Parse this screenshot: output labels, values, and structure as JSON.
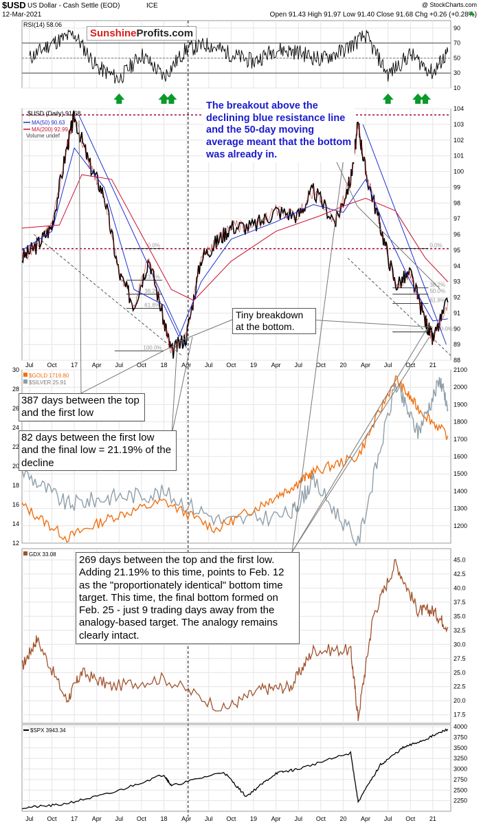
{
  "header": {
    "symbol": "$USD",
    "desc": "US Dollar - Cash Settle (EOD)",
    "exchange": "ICE",
    "date": "12-Mar-2021",
    "copyright": "@ StockCharts.com",
    "ohlc": "Open 91.43  High 91.97  Low 91.40  Close 91.68  Chg +0.26 (+0.28%)"
  },
  "logo": {
    "part1": "Sunshine",
    "part2": "Profits.com"
  },
  "colors": {
    "ma50": "#1f2fd0",
    "ma200": "#c8102e",
    "gold": "#f07010",
    "silver": "#8f9ea8",
    "gdx": "#a0522d",
    "spx": "#000000",
    "resistance": "#a00040",
    "arrow": "#0a9a2a"
  },
  "callouts": {
    "breakout": "The breakout above the declining blue resistance line and the 50-day moving average meant that the bottom was already in.",
    "tiny": "Tiny breakdown at the bottom.",
    "days387": "387 days between the top and the first low",
    "days82": "82 days between the first low and the final low = 21.19% of the decline",
    "days269": "269 days between the top and the first low. Adding 21.19% to this time, points to Feb. 12 as the \"proportionately identical\" bottom time target. This time, the final bottom formed on Feb. 25 - just 9 trading days away from the analogy-based target. The analogy remains clearly intact."
  },
  "chart_data": [
    {
      "type": "line",
      "title": "RSI(14) 58.06",
      "ylim": [
        10,
        100
      ],
      "yticks": [
        10,
        30,
        50,
        70,
        90
      ],
      "reference_lines": [
        30,
        50,
        70
      ],
      "series": [
        {
          "name": "RSI(14) 58.06",
          "x": [
            "Jul 2016",
            "Oct 2016",
            "Jan 2017",
            "Apr 2017",
            "Jul 2017",
            "Oct 2017",
            "Jan 2018",
            "Apr 2018",
            "Jul 2018",
            "Oct 2018",
            "Jan 2019",
            "Apr 2019",
            "Jul 2019",
            "Oct 2019",
            "Jan 2020",
            "Apr 2020",
            "Jul 2020",
            "Oct 2020",
            "Jan 2021",
            "Mar 2021"
          ],
          "values": [
            50,
            70,
            82,
            38,
            22,
            55,
            25,
            62,
            68,
            55,
            45,
            62,
            58,
            48,
            60,
            80,
            28,
            55,
            30,
            58
          ]
        }
      ],
      "markers": {
        "up_arrows": [
          "Jul 2017",
          "Jan 2018",
          "Feb 2018",
          "Jul 2020",
          "Nov 2020",
          "Dec 2020"
        ]
      }
    },
    {
      "type": "line",
      "title": "$USD (Daily) 91.68",
      "ylim": [
        88,
        104
      ],
      "yticks": [
        88,
        89,
        90,
        91,
        92,
        93,
        94,
        95,
        96,
        97,
        98,
        99,
        100,
        101,
        102,
        103,
        104
      ],
      "xticks": [
        "Jul",
        "Oct",
        "17",
        "Apr",
        "Jul",
        "Oct",
        "18",
        "Apr",
        "Jul",
        "Oct",
        "19",
        "Apr",
        "Jul",
        "Oct",
        "20",
        "Apr",
        "Jul",
        "Oct",
        "21"
      ],
      "series": [
        {
          "name": "$USD (Daily) 91.68",
          "x": [
            "Jun 2016",
            "Aug 2016",
            "Oct 2016",
            "Dec 2016",
            "Jan 2017",
            "Mar 2017",
            "May 2017",
            "Jul 2017",
            "Sep 2017",
            "Nov 2017",
            "Jan 2018",
            "Feb 2018",
            "Apr 2018",
            "Jun 2018",
            "Aug 2018",
            "Oct 2018",
            "Jan 2019",
            "Apr 2019",
            "Jul 2019",
            "Sep 2019",
            "Dec 2019",
            "Feb 2020",
            "Mar 2020",
            "Apr 2020",
            "Jun 2020",
            "Aug 2020",
            "Oct 2020",
            "Dec 2020",
            "Jan 2021",
            "Mar 2021"
          ],
          "values": [
            94.5,
            95.3,
            96.5,
            101.5,
            103.5,
            100.5,
            98.5,
            93.5,
            91.5,
            94.5,
            90.5,
            88.5,
            89.5,
            94.5,
            95.5,
            96.5,
            96.5,
            97.5,
            97.2,
            98.8,
            96.8,
            99.5,
            103.0,
            100.0,
            96.5,
            92.8,
            93.5,
            90.5,
            89.3,
            91.68
          ]
        },
        {
          "name": "MA(50) 90.63",
          "x": [
            "Jun 2016",
            "Oct 2016",
            "Jan 2017",
            "May 2017",
            "Sep 2017",
            "Jan 2018",
            "Mar 2018",
            "Jun 2018",
            "Oct 2018",
            "Apr 2019",
            "Sep 2019",
            "Jan 2020",
            "Apr 2020",
            "Jul 2020",
            "Oct 2020",
            "Jan 2021",
            "Mar 2021"
          ],
          "values": [
            95.0,
            96.2,
            101.5,
            99.0,
            92.5,
            91.5,
            89.5,
            93.0,
            95.7,
            96.8,
            97.9,
            97.4,
            99.5,
            96.0,
            93.0,
            90.5,
            90.63
          ]
        },
        {
          "name": "MA(200) 92.99",
          "x": [
            "Jun 2016",
            "Nov 2016",
            "Feb 2017",
            "Jun 2017",
            "Oct 2017",
            "Feb 2018",
            "May 2018",
            "Oct 2018",
            "Apr 2019",
            "Oct 2019",
            "Jan 2020",
            "Apr 2020",
            "Aug 2020",
            "Dec 2020",
            "Mar 2021"
          ],
          "values": [
            96.4,
            96.6,
            99.8,
            99.5,
            96.0,
            92.5,
            91.8,
            94.3,
            96.2,
            97.2,
            97.8,
            98.3,
            97.5,
            94.5,
            92.99
          ]
        }
      ],
      "annotations": [
        "0.0%",
        "23.6%",
        "38.2%",
        "50.0%",
        "61.8%",
        "100.0%"
      ],
      "legend": [
        "MA(50) 90.63",
        "MA(200) 92.99",
        "Volume undef"
      ]
    },
    {
      "type": "line",
      "title": "$GOLD 1719.80 / $SILVER 25.91",
      "ylim_left": [
        12,
        30
      ],
      "ylim_right": [
        1100,
        2100
      ],
      "yticks_right": [
        1200,
        1300,
        1400,
        1500,
        1600,
        1700,
        1800,
        1900,
        2000,
        2100
      ],
      "series": [
        {
          "name": "$GOLD 1719.80",
          "x": [
            "Jun 2016",
            "Dec 2016",
            "Jun 2017",
            "Jan 2018",
            "Aug 2018",
            "Feb 2019",
            "Jun 2019",
            "Sep 2019",
            "Mar 2020",
            "Aug 2020",
            "Nov 2020",
            "Mar 2021"
          ],
          "values": [
            1320,
            1130,
            1250,
            1340,
            1180,
            1320,
            1420,
            1510,
            1600,
            2050,
            1880,
            1719.8
          ]
        },
        {
          "name": "$SILVER 25.91",
          "x": [
            "Jun 2016",
            "Dec 2016",
            "Jun 2017",
            "Jan 2018",
            "Sep 2018",
            "Jun 2019",
            "Sep 2019",
            "Mar 2020",
            "Aug 2020",
            "Nov 2020",
            "Feb 2021",
            "Mar 2021"
          ],
          "values": [
            19.5,
            16.0,
            16.8,
            17.2,
            14.2,
            15.0,
            18.5,
            12.0,
            28.5,
            23.5,
            29.0,
            25.91
          ]
        }
      ]
    },
    {
      "type": "line",
      "title": "GDX 33.08",
      "ylim": [
        16,
        47
      ],
      "yticks": [
        17.5,
        20.0,
        22.5,
        25.0,
        27.5,
        30.0,
        32.5,
        35.0,
        37.5,
        40.0,
        42.5,
        45.0
      ],
      "series": [
        {
          "name": "GDX 33.08",
          "x": [
            "Jun 2016",
            "Aug 2016",
            "Dec 2016",
            "Feb 2017",
            "Jun 2017",
            "Jan 2018",
            "Sep 2018",
            "Feb 2019",
            "Jun 2019",
            "Sep 2019",
            "Feb 2020",
            "Mar 2020",
            "May 2020",
            "Aug 2020",
            "Nov 2020",
            "Jan 2021",
            "Mar 2021"
          ],
          "values": [
            26.0,
            31.0,
            20.0,
            25.0,
            22.5,
            24.0,
            18.5,
            22.0,
            22.5,
            29.0,
            29.0,
            17.0,
            35.0,
            44.5,
            36.0,
            36.0,
            33.08
          ]
        }
      ]
    },
    {
      "type": "line",
      "title": "$SPX 3943.34",
      "ylim": [
        2000,
        4050
      ],
      "yticks": [
        2250,
        2500,
        2750,
        3000,
        3250,
        3500,
        3750,
        4000
      ],
      "xticks": [
        "Jul",
        "Oct",
        "17",
        "Apr",
        "Jul",
        "Oct",
        "18",
        "Apr",
        "Jul",
        "Oct",
        "19",
        "Apr",
        "Jul",
        "Oct",
        "20",
        "Apr",
        "Jul",
        "Oct",
        "21"
      ],
      "series": [
        {
          "name": "$SPX 3943.34",
          "x": [
            "Jun 2016",
            "Nov 2016",
            "Jun 2017",
            "Jan 2018",
            "Feb 2018",
            "Sep 2018",
            "Dec 2018",
            "Apr 2019",
            "Jul 2019",
            "Feb 2020",
            "Mar 2020",
            "Jun 2020",
            "Sep 2020",
            "Dec 2020",
            "Mar 2021"
          ],
          "values": [
            2080,
            2150,
            2430,
            2870,
            2600,
            2930,
            2350,
            2900,
            3000,
            3380,
            2230,
            3100,
            3500,
            3700,
            3943.34
          ]
        }
      ]
    }
  ]
}
